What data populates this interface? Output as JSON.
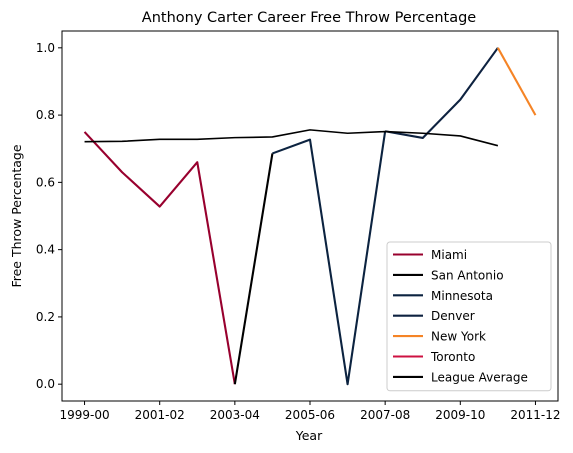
{
  "chart_data": {
    "type": "line",
    "title": "Anthony Carter Career Free Throw Percentage",
    "xlabel": "Year",
    "ylabel": "Free Throw Percentage",
    "x_ticks": [
      "1999-00",
      "2001-02",
      "2003-04",
      "2005-06",
      "2007-08",
      "2009-10",
      "2011-12"
    ],
    "y_ticks": [
      "0.0",
      "0.2",
      "0.4",
      "0.6",
      "0.8",
      "1.0"
    ],
    "xlim": [
      -0.6,
      12.6
    ],
    "ylim": [
      -0.05,
      1.05
    ],
    "grid": false,
    "legend_position": "bottom-right",
    "seasons": [
      "1999-00",
      "2000-01",
      "2001-02",
      "2002-03",
      "2003-04",
      "2004-05",
      "2005-06",
      "2006-07",
      "2007-08",
      "2008-09",
      "2009-10",
      "2010-11",
      "2011-12"
    ],
    "series": [
      {
        "name": "Miami",
        "color": "#98002E",
        "points": [
          [
            0,
            0.75
          ],
          [
            1,
            0.63
          ],
          [
            2,
            0.528
          ],
          [
            3,
            0.66
          ],
          [
            4,
            0.0
          ]
        ]
      },
      {
        "name": "San Antonio",
        "color": "#000000",
        "points": [
          [
            4,
            0.0
          ],
          [
            5,
            0.686
          ]
        ]
      },
      {
        "name": "Minnesota",
        "color": "#0C2340",
        "points": [
          [
            5,
            0.686
          ],
          [
            6,
            0.727
          ],
          [
            7,
            0.0
          ],
          [
            8,
            0.752
          ]
        ]
      },
      {
        "name": "Denver",
        "color": "#0E2240",
        "points": [
          [
            8,
            0.752
          ],
          [
            9,
            0.732
          ],
          [
            10,
            0.846
          ],
          [
            11,
            1.0
          ]
        ]
      },
      {
        "name": "New York",
        "color": "#F58426",
        "points": [
          [
            11,
            1.0
          ],
          [
            12,
            0.8
          ]
        ]
      },
      {
        "name": "Toronto",
        "color": "#CE1141",
        "points": []
      },
      {
        "name": "League Average",
        "color": "#000000",
        "points": [
          [
            0,
            0.721
          ],
          [
            1,
            0.722
          ],
          [
            2,
            0.728
          ],
          [
            3,
            0.728
          ],
          [
            4,
            0.733
          ],
          [
            5,
            0.735
          ],
          [
            6,
            0.756
          ],
          [
            7,
            0.746
          ],
          [
            8,
            0.751
          ],
          [
            9,
            0.746
          ],
          [
            10,
            0.738
          ],
          [
            11,
            0.709
          ]
        ]
      }
    ]
  }
}
